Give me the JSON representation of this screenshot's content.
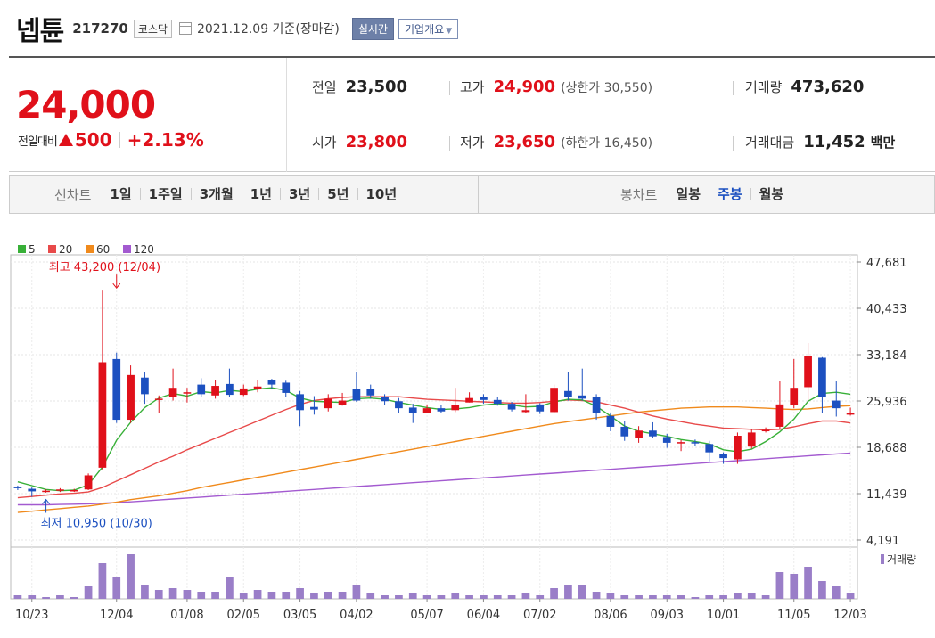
{
  "header": {
    "name": "넵튠",
    "code": "217270",
    "market": "코스닥",
    "as_of": "2021.12.09 기준(장마감)",
    "realtime_label": "실시간",
    "overview_label": "기업개요"
  },
  "quote": {
    "price": "24,000",
    "change_label": "전일대비",
    "change": "500",
    "change_pct": "+2.13%",
    "prev_close_label": "전일",
    "prev_close": "23,500",
    "high_label": "고가",
    "high": "24,900",
    "upper_limit": "(상한가 30,550)",
    "volume_label": "거래량",
    "volume": "473,620",
    "open_label": "시가",
    "open": "23,800",
    "low_label": "저가",
    "low": "23,650",
    "lower_limit": "(하한가 16,450)",
    "amount_label": "거래대금",
    "amount": "11,452",
    "amount_unit": "백만"
  },
  "tabs": {
    "line_label": "선차트",
    "line_periods": [
      "1일",
      "1주일",
      "3개월",
      "1년",
      "3년",
      "5년",
      "10년"
    ],
    "candle_label": "봉차트",
    "candle_periods": [
      "일봉",
      "주봉",
      "월봉"
    ],
    "active_candle": 1
  },
  "colors": {
    "up": "#e0101a",
    "down": "#1c50c0",
    "ma5": "#38b038",
    "ma20": "#e84a4a",
    "ma60": "#f08a1c",
    "ma120": "#a35ad0",
    "volume": "#9a7ec8"
  },
  "chart_data": {
    "type": "candlestick",
    "legend": [
      {
        "name": "5",
        "color": "#38b038"
      },
      {
        "name": "20",
        "color": "#e84a4a"
      },
      {
        "name": "60",
        "color": "#f08a1c"
      },
      {
        "name": "120",
        "color": "#a35ad0"
      }
    ],
    "y_ticks": [
      "47,681",
      "40,433",
      "33,184",
      "25,936",
      "18,688",
      "11,439",
      "4,191"
    ],
    "ylim": [
      4191,
      47681
    ],
    "x_labels": [
      {
        "i": 1,
        "label": "10/23"
      },
      {
        "i": 7,
        "label": "12/04"
      },
      {
        "i": 12,
        "label": "01/08"
      },
      {
        "i": 16,
        "label": "02/05"
      },
      {
        "i": 20,
        "label": "03/05"
      },
      {
        "i": 24,
        "label": "04/02"
      },
      {
        "i": 29,
        "label": "05/07"
      },
      {
        "i": 33,
        "label": "06/04"
      },
      {
        "i": 37,
        "label": "07/02"
      },
      {
        "i": 42,
        "label": "08/06"
      },
      {
        "i": 46,
        "label": "09/03"
      },
      {
        "i": 50,
        "label": "10/01"
      },
      {
        "i": 55,
        "label": "11/05"
      },
      {
        "i": 59,
        "label": "12/03"
      }
    ],
    "annotations": {
      "high": {
        "text": "최고 43,200 (12/04)",
        "i": 7,
        "value": 43200
      },
      "low": {
        "text": "최저 10,950 (10/30)",
        "i": 2,
        "value": 10950
      }
    },
    "volume_label": "거래량",
    "candles": [
      [
        12500,
        12300,
        12700,
        12000,
        2
      ],
      [
        12200,
        11800,
        12400,
        10950,
        2
      ],
      [
        11800,
        11900,
        12100,
        11600,
        1
      ],
      [
        11900,
        12100,
        12300,
        11700,
        2
      ],
      [
        11900,
        12000,
        12200,
        11700,
        1
      ],
      [
        12100,
        14300,
        14600,
        12000,
        7
      ],
      [
        15500,
        32000,
        43200,
        15200,
        20
      ],
      [
        32500,
        23000,
        33500,
        22500,
        12
      ],
      [
        23000,
        30000,
        31500,
        22500,
        25
      ],
      [
        29600,
        27000,
        30500,
        25500,
        8
      ],
      [
        26200,
        26300,
        26800,
        24100,
        5
      ],
      [
        26500,
        28000,
        31000,
        26000,
        6
      ],
      [
        27200,
        27300,
        28000,
        25700,
        5
      ],
      [
        28500,
        27000,
        29500,
        26500,
        4
      ],
      [
        26800,
        28300,
        29200,
        26300,
        4
      ],
      [
        28600,
        26900,
        31000,
        26500,
        12
      ],
      [
        26900,
        27900,
        28500,
        26700,
        3
      ],
      [
        27800,
        28200,
        29200,
        27300,
        5
      ],
      [
        29200,
        28500,
        29400,
        27800,
        4
      ],
      [
        28800,
        27200,
        29100,
        26500,
        4
      ],
      [
        27000,
        24500,
        27500,
        22000,
        6
      ],
      [
        25000,
        24600,
        26700,
        23800,
        3
      ],
      [
        24800,
        26300,
        27000,
        24300,
        4
      ],
      [
        25300,
        26000,
        27200,
        25200,
        4
      ],
      [
        27800,
        26000,
        30500,
        25800,
        8
      ],
      [
        27800,
        26800,
        28500,
        26300,
        3
      ],
      [
        26500,
        25900,
        27000,
        25300,
        2
      ],
      [
        25900,
        24800,
        26400,
        24000,
        2
      ],
      [
        24900,
        24000,
        25500,
        22500,
        3
      ],
      [
        24000,
        24800,
        25400,
        24000,
        2
      ],
      [
        24800,
        24300,
        25300,
        24000,
        2
      ],
      [
        24500,
        25300,
        28000,
        24200,
        3
      ],
      [
        25700,
        26400,
        27300,
        25700,
        2
      ],
      [
        26500,
        26100,
        27000,
        25500,
        2
      ],
      [
        26100,
        25500,
        26500,
        25200,
        2
      ],
      [
        25500,
        24600,
        25800,
        24300,
        2
      ],
      [
        24200,
        24500,
        27000,
        24000,
        3
      ],
      [
        25400,
        24300,
        25600,
        23900,
        2
      ],
      [
        24200,
        28000,
        28500,
        24000,
        6
      ],
      [
        27500,
        26500,
        30500,
        26000,
        8
      ],
      [
        26800,
        26300,
        31000,
        26000,
        8
      ],
      [
        26500,
        24000,
        27000,
        23000,
        4
      ],
      [
        23600,
        21900,
        24000,
        21200,
        3
      ],
      [
        21900,
        20400,
        22800,
        19700,
        2
      ],
      [
        20200,
        21300,
        22000,
        19400,
        2
      ],
      [
        21300,
        20400,
        22600,
        20200,
        2
      ],
      [
        20300,
        19400,
        20800,
        18600,
        2
      ],
      [
        19300,
        19500,
        19800,
        18100,
        2
      ],
      [
        19500,
        19400,
        19900,
        18900,
        1
      ],
      [
        19200,
        17900,
        19700,
        16500,
        2
      ],
      [
        17600,
        17000,
        17900,
        16100,
        2
      ],
      [
        16800,
        20500,
        21000,
        16100,
        3
      ],
      [
        18800,
        21000,
        21600,
        18500,
        3
      ],
      [
        21300,
        21400,
        21800,
        21000,
        2
      ],
      [
        21900,
        25400,
        29000,
        21600,
        15
      ],
      [
        25300,
        28000,
        32500,
        24800,
        14
      ],
      [
        28100,
        33000,
        35000,
        26000,
        18
      ],
      [
        32700,
        26500,
        32800,
        24000,
        10
      ],
      [
        26000,
        24800,
        29000,
        23500,
        7
      ],
      [
        23800,
        24000,
        24900,
        23650,
        3
      ]
    ],
    "ma": {
      "ma5": [
        13300,
        12700,
        12100,
        11900,
        12000,
        12800,
        15600,
        19800,
        22600,
        24900,
        26400,
        27100,
        26700,
        27400,
        27200,
        27600,
        27400,
        27800,
        28000,
        27600,
        26400,
        25900,
        25800,
        25700,
        26300,
        26400,
        26200,
        25700,
        25300,
        24900,
        24600,
        24700,
        24900,
        25300,
        25500,
        25300,
        25000,
        25100,
        25800,
        26200,
        26100,
        25100,
        23600,
        22000,
        21200,
        20800,
        20400,
        19900,
        19600,
        19200,
        18300,
        18000,
        18400,
        19600,
        21100,
        23100,
        25900,
        27100,
        27300,
        27000
      ],
      "ma20": [
        10800,
        11000,
        11200,
        11400,
        11500,
        11700,
        12400,
        13400,
        14400,
        15400,
        16400,
        17300,
        18300,
        19200,
        20100,
        21000,
        21900,
        22800,
        23700,
        24600,
        25400,
        26000,
        26300,
        26500,
        26600,
        26600,
        26600,
        26600,
        26400,
        26200,
        26100,
        26000,
        25900,
        25800,
        25700,
        25600,
        25600,
        25700,
        25900,
        26100,
        26000,
        25800,
        25300,
        24800,
        24200,
        23600,
        23100,
        22700,
        22300,
        22000,
        21700,
        21600,
        21500,
        21400,
        21500,
        21900,
        22400,
        22800,
        22800,
        22500
      ],
      "ma60": [
        8500,
        8700,
        8900,
        9100,
        9300,
        9500,
        9800,
        10100,
        10500,
        10800,
        11100,
        11500,
        11900,
        12400,
        12800,
        13200,
        13600,
        14000,
        14400,
        14800,
        15200,
        15600,
        16000,
        16400,
        16800,
        17200,
        17600,
        18000,
        18400,
        18800,
        19200,
        19600,
        20000,
        20400,
        20800,
        21200,
        21600,
        22000,
        22400,
        22700,
        23000,
        23300,
        23600,
        23900,
        24200,
        24400,
        24600,
        24800,
        24900,
        25000,
        25000,
        25000,
        24900,
        24800,
        24700,
        24600,
        24700,
        24900,
        25100,
        25200
      ],
      "ma120": [
        9700,
        9700,
        9700,
        9750,
        9800,
        9850,
        9950,
        10050,
        10150,
        10300,
        10450,
        10600,
        10750,
        10900,
        11050,
        11200,
        11350,
        11500,
        11650,
        11800,
        11950,
        12100,
        12250,
        12400,
        12550,
        12700,
        12850,
        13000,
        13150,
        13300,
        13450,
        13600,
        13750,
        13900,
        14050,
        14200,
        14350,
        14500,
        14650,
        14800,
        14950,
        15100,
        15250,
        15400,
        15550,
        15700,
        15850,
        16000,
        16150,
        16300,
        16450,
        16600,
        16750,
        16900,
        17050,
        17200,
        17350,
        17500,
        17650,
        17800
      ]
    }
  }
}
